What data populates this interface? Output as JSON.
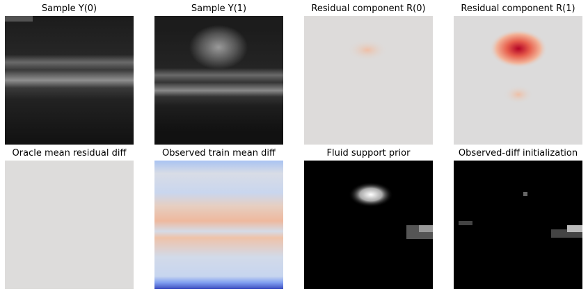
{
  "panels": [
    {
      "title": "Sample Y(0)"
    },
    {
      "title": "Sample Y(1)"
    },
    {
      "title": "Residual component R(0)"
    },
    {
      "title": "Residual component R(1)"
    },
    {
      "title": "Oracle mean residual diff"
    },
    {
      "title": "Observed train mean diff"
    },
    {
      "title": "Fluid support prior"
    },
    {
      "title": "Observed-diff initialization"
    }
  ]
}
